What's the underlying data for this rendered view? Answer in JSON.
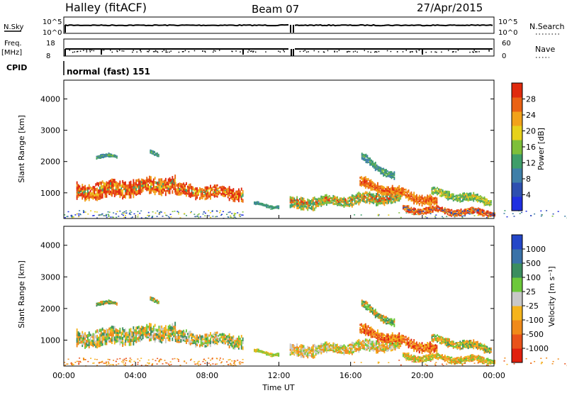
{
  "header": {
    "station": "Halley (fitACF)",
    "beam": "Beam 07",
    "date": "27/Apr/2015"
  },
  "top_panels": {
    "nsky_label": "N.Sky",
    "nsky_ticks": [
      "10^5",
      "10^0"
    ],
    "nsearch_label": "N.Search",
    "nsearch_ticks": [
      "10^5",
      "10^0"
    ],
    "freq_label": "Freq.",
    "freq_unit": "[MHz]",
    "freq_ticks": [
      "18",
      "8"
    ],
    "nave_label": "Nave",
    "nave_ticks": [
      "60",
      "0"
    ],
    "cpid_label": "CPID",
    "cpid_value": "normal (fast) 151"
  },
  "chart_data": [
    {
      "type": "heatmap",
      "name": "power",
      "ylabel": "Slant Range [km]",
      "ylim": [
        180,
        4600
      ],
      "yticks": [
        "1000",
        "2000",
        "3000",
        "4000"
      ],
      "ytick_values": [
        1000,
        2000,
        3000,
        4000
      ],
      "xlim": [
        0,
        24
      ],
      "colorbar_label": "Power [dB]",
      "colorbar_ticks": [
        "4",
        "8",
        "12",
        "16",
        "20",
        "24",
        "28"
      ],
      "colorbar_range": [
        0,
        32
      ],
      "colorbar_colors": [
        "#1f2fe0",
        "#2d4fb0",
        "#3f7fa8",
        "#3f9e6a",
        "#7ebf3a",
        "#e7d11b",
        "#f2a21a",
        "#ea6214",
        "#e02a0d"
      ]
    },
    {
      "type": "heatmap",
      "name": "velocity",
      "ylabel": "Slant Range [km]",
      "ylim": [
        180,
        4600
      ],
      "yticks": [
        "1000",
        "2000",
        "3000",
        "4000"
      ],
      "ytick_values": [
        1000,
        2000,
        3000,
        4000
      ],
      "xlim": [
        0,
        24
      ],
      "xticks": [
        "00:00",
        "04:00",
        "08:00",
        "12:00",
        "16:00",
        "20:00",
        "00:00"
      ],
      "xtick_values": [
        0,
        4,
        8,
        12,
        16,
        20,
        24
      ],
      "xlabel": "Time UT",
      "colorbar_label": "Velocity [m s⁻¹]",
      "colorbar_ticks": [
        "1000",
        "500",
        "100",
        "25",
        "-25",
        "-100",
        "-500",
        "-1000"
      ],
      "colorbar_colors": [
        "#2346c8",
        "#3a72a8",
        "#3b8d5f",
        "#6cc83a",
        "#c8c8c8",
        "#f5b41c",
        "#f08a1a",
        "#e9521a",
        "#e0200e"
      ]
    }
  ]
}
